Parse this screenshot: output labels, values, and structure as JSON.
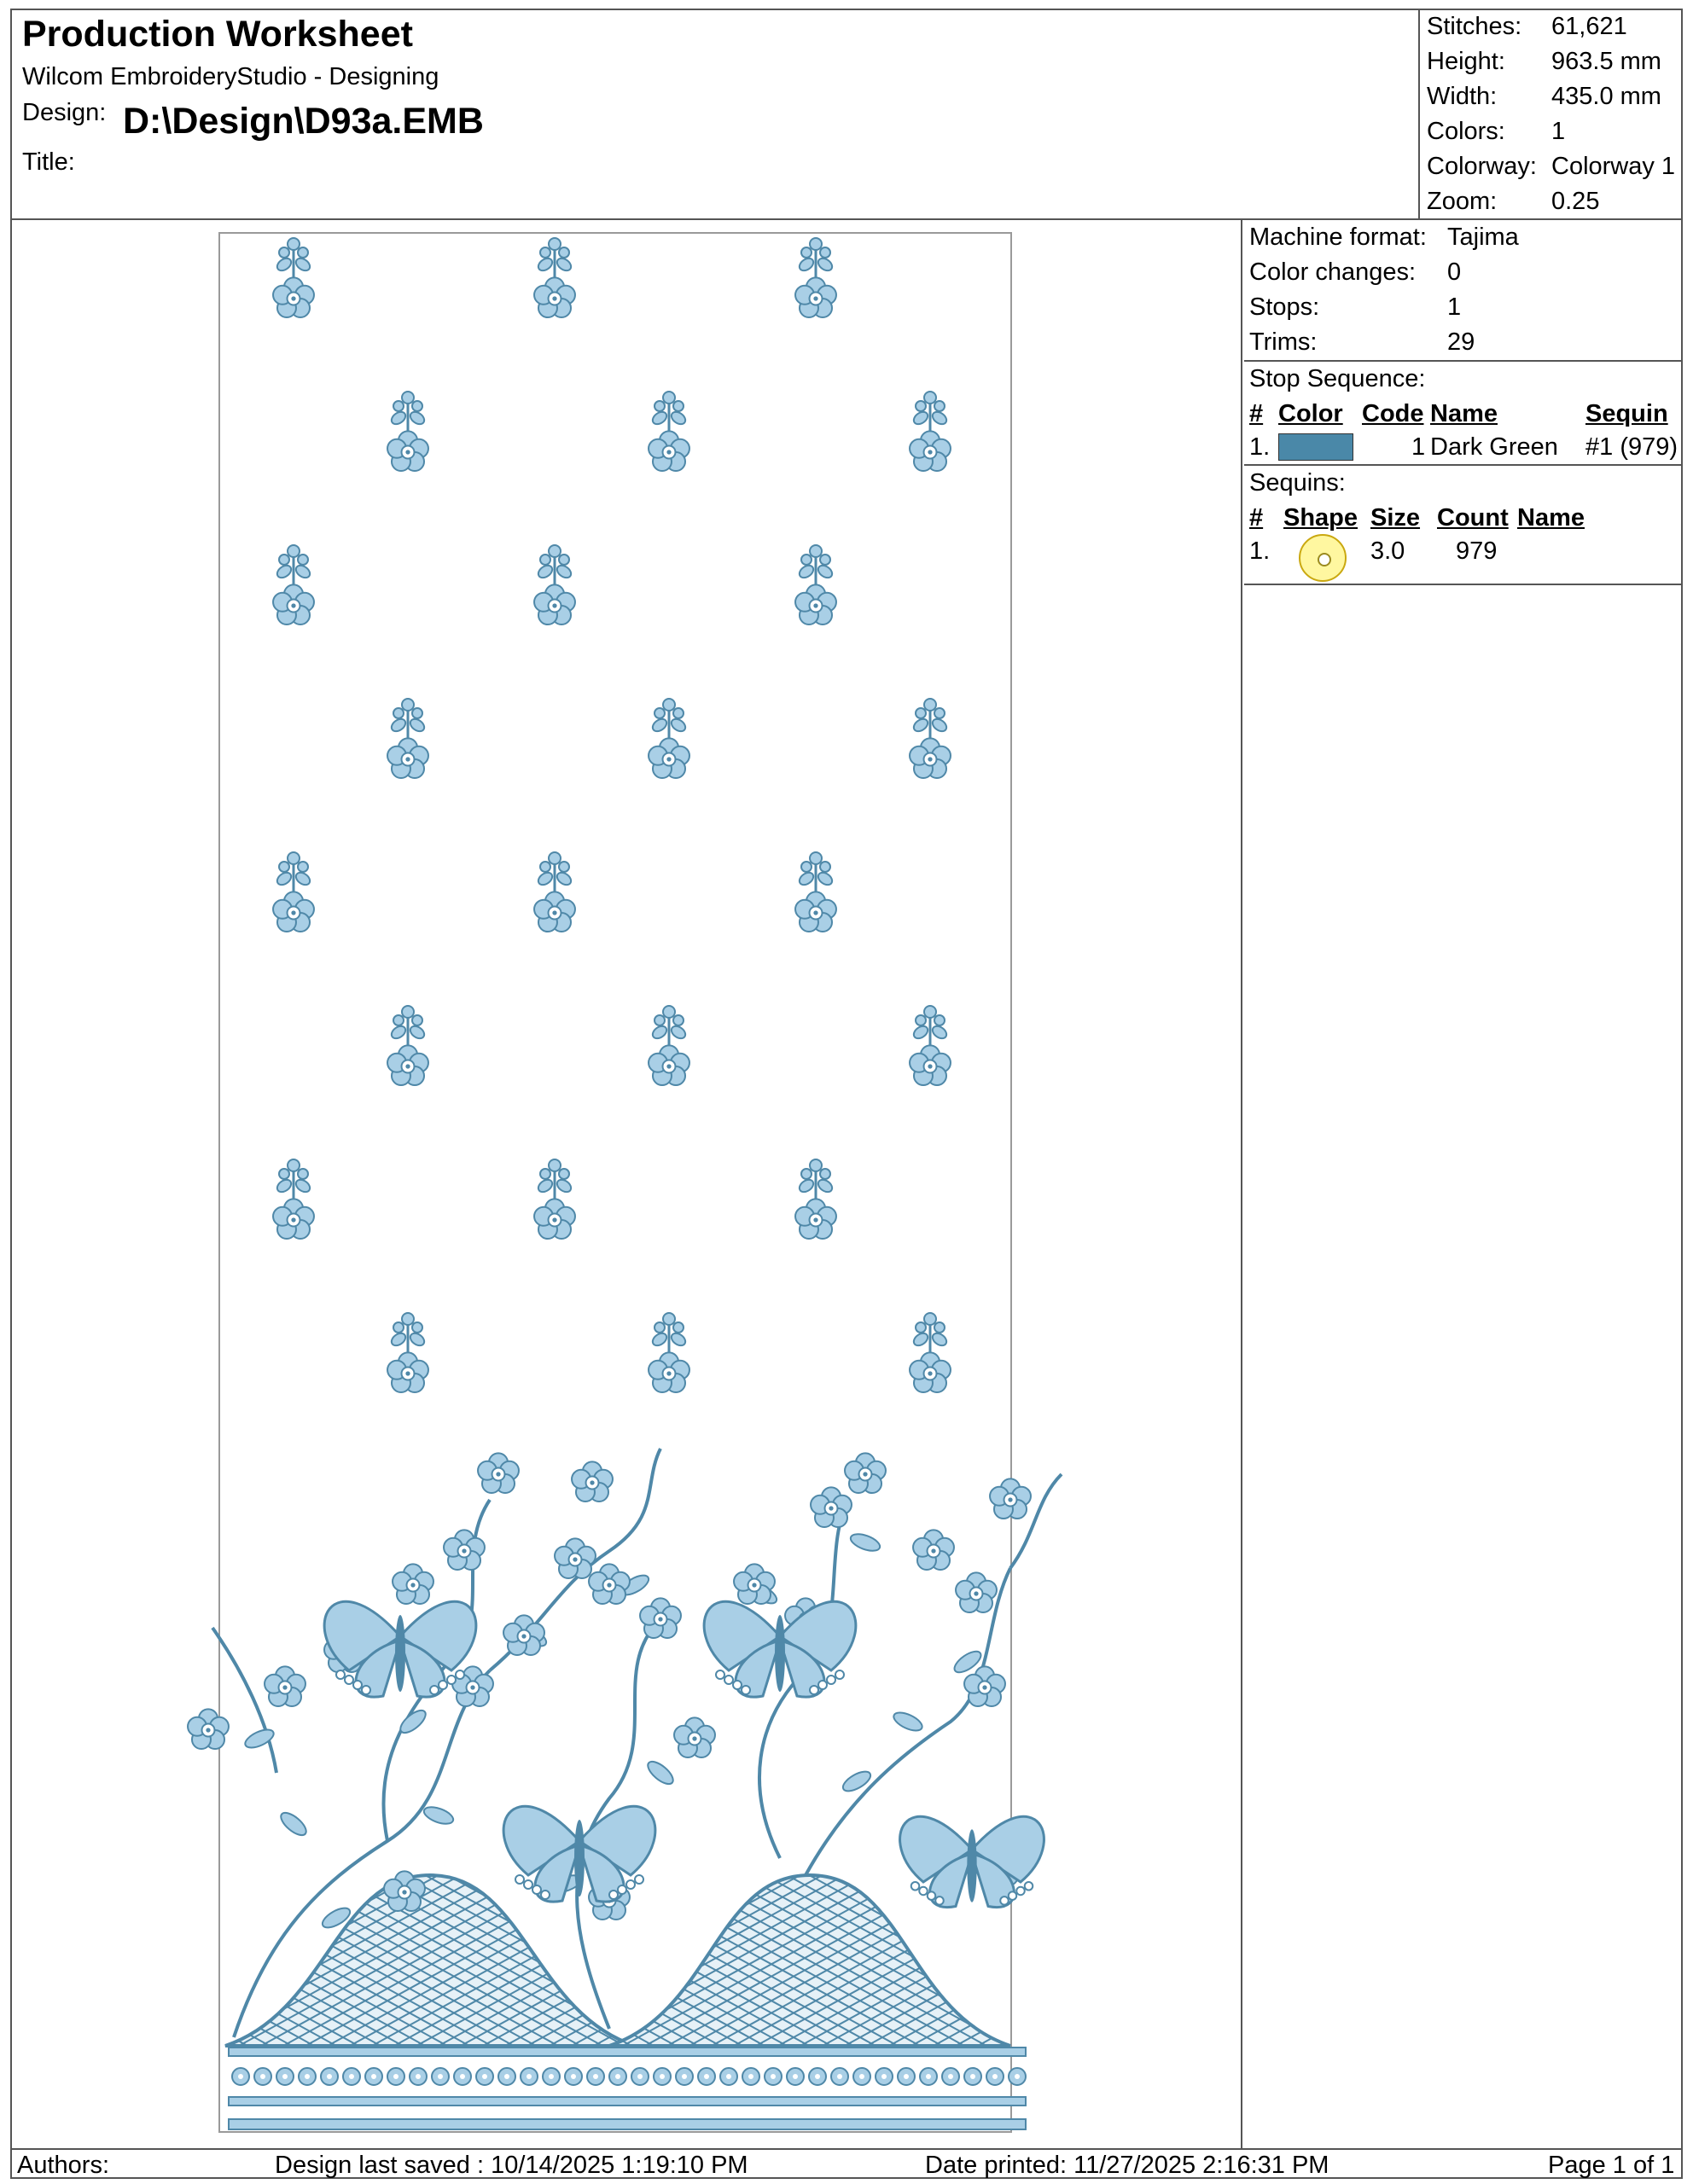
{
  "header": {
    "title": "Production Worksheet",
    "app": "Wilcom EmbroideryStudio - Designing",
    "design_label": "Design:",
    "design_value": "D:\\Design\\D93a.EMB",
    "title_label": "Title:"
  },
  "summary": [
    {
      "key": "Stitches:",
      "value": "61,621"
    },
    {
      "key": "Height:",
      "value": "963.5 mm"
    },
    {
      "key": "Width:",
      "value": "435.0 mm"
    },
    {
      "key": "Colors:",
      "value": "1"
    },
    {
      "key": "Colorway:",
      "value": "Colorway 1"
    },
    {
      "key": "Zoom:",
      "value": "0.25"
    }
  ],
  "machine": [
    {
      "key": "Machine format:",
      "value": "Tajima"
    },
    {
      "key": "Color changes:",
      "value": "0"
    },
    {
      "key": "Stops:",
      "value": "1"
    },
    {
      "key": "Trims:",
      "value": "29"
    }
  ],
  "stop_sequence": {
    "title": "Stop Sequence:",
    "headers": {
      "num": "#",
      "color": "Color",
      "code": "Code",
      "name": "Name",
      "sequin": "Sequin"
    },
    "rows": [
      {
        "num": "1.",
        "color_hex": "#4a88a8",
        "code": "1",
        "name": "Dark Green",
        "sequin": "#1 (979)"
      }
    ]
  },
  "sequins": {
    "title": "Sequins:",
    "headers": {
      "num": "#",
      "shape": "Shape",
      "size": "Size",
      "count": "Count",
      "name": "Name"
    },
    "rows": [
      {
        "num": "1.",
        "shape_icon": "round-sequin-icon",
        "size": "3.0",
        "count": "979",
        "name": ""
      }
    ]
  },
  "footer": {
    "authors": "Authors:",
    "saved": "Design last saved : 10/14/2025 1:19:10 PM",
    "printed": "Date printed: 11/27/2025 2:16:31 PM",
    "page": "Page 1 of 1"
  },
  "colors": {
    "thread_light": "#a9cfe6",
    "thread_dark": "#4f88a8",
    "frame": "#9a9a9a"
  }
}
